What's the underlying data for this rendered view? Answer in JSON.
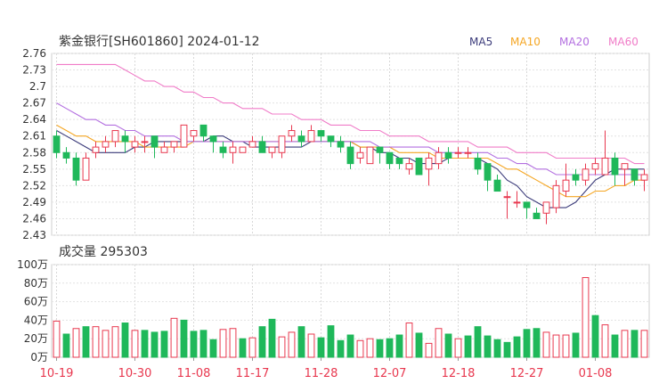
{
  "chart_data": [
    {
      "type": "candlestick",
      "title": "紫金银行[SH601860] 2024-01-12",
      "legend": [
        {
          "name": "MA5",
          "color": "#3b3b7a"
        },
        {
          "name": "MA10",
          "color": "#f5a623"
        },
        {
          "name": "MA20",
          "color": "#b36fe0"
        },
        {
          "name": "MA60",
          "color": "#f07cc8"
        }
      ],
      "legend_position": "top-right",
      "ylim": [
        2.43,
        2.76
      ],
      "yticks": [
        "2.76",
        "2.73",
        "2.7",
        "2.67",
        "2.64",
        "2.61",
        "2.58",
        "2.55",
        "2.52",
        "2.49",
        "2.46",
        "2.43"
      ],
      "grid": true,
      "colors": {
        "up": "#e8384f",
        "down": "#1fb85a"
      },
      "candles": [
        [
          2.61,
          2.58,
          2.62,
          2.57
        ],
        [
          2.58,
          2.57,
          2.59,
          2.56
        ],
        [
          2.57,
          2.53,
          2.58,
          2.52
        ],
        [
          2.53,
          2.57,
          2.58,
          2.53
        ],
        [
          2.58,
          2.59,
          2.6,
          2.57
        ],
        [
          2.59,
          2.6,
          2.61,
          2.58
        ],
        [
          2.6,
          2.62,
          2.62,
          2.59
        ],
        [
          2.61,
          2.6,
          2.62,
          2.58
        ],
        [
          2.59,
          2.6,
          2.61,
          2.58
        ],
        [
          2.6,
          2.6,
          2.61,
          2.58
        ],
        [
          2.61,
          2.59,
          2.61,
          2.57
        ],
        [
          2.58,
          2.59,
          2.6,
          2.58
        ],
        [
          2.59,
          2.6,
          2.6,
          2.58
        ],
        [
          2.59,
          2.63,
          2.63,
          2.59
        ],
        [
          2.61,
          2.62,
          2.62,
          2.6
        ],
        [
          2.63,
          2.61,
          2.63,
          2.6
        ],
        [
          2.61,
          2.6,
          2.61,
          2.58
        ],
        [
          2.59,
          2.58,
          2.6,
          2.57
        ],
        [
          2.58,
          2.59,
          2.6,
          2.56
        ],
        [
          2.58,
          2.59,
          2.59,
          2.58
        ],
        [
          2.59,
          2.6,
          2.61,
          2.59
        ],
        [
          2.6,
          2.58,
          2.61,
          2.58
        ],
        [
          2.58,
          2.59,
          2.59,
          2.57
        ],
        [
          2.58,
          2.61,
          2.61,
          2.57
        ],
        [
          2.61,
          2.62,
          2.63,
          2.6
        ],
        [
          2.61,
          2.6,
          2.62,
          2.59
        ],
        [
          2.6,
          2.62,
          2.63,
          2.6
        ],
        [
          2.62,
          2.61,
          2.62,
          2.6
        ],
        [
          2.61,
          2.6,
          2.61,
          2.59
        ],
        [
          2.6,
          2.59,
          2.61,
          2.58
        ],
        [
          2.59,
          2.56,
          2.6,
          2.55
        ],
        [
          2.57,
          2.58,
          2.59,
          2.56
        ],
        [
          2.56,
          2.59,
          2.59,
          2.56
        ],
        [
          2.59,
          2.58,
          2.59,
          2.56
        ],
        [
          2.58,
          2.56,
          2.58,
          2.55
        ],
        [
          2.57,
          2.56,
          2.57,
          2.55
        ],
        [
          2.55,
          2.56,
          2.57,
          2.54
        ],
        [
          2.57,
          2.54,
          2.57,
          2.54
        ],
        [
          2.55,
          2.57,
          2.58,
          2.52
        ],
        [
          2.56,
          2.58,
          2.59,
          2.55
        ],
        [
          2.58,
          2.57,
          2.59,
          2.56
        ],
        [
          2.58,
          2.58,
          2.59,
          2.57
        ],
        [
          2.58,
          2.58,
          2.59,
          2.57
        ],
        [
          2.57,
          2.55,
          2.58,
          2.54
        ],
        [
          2.56,
          2.53,
          2.56,
          2.51
        ],
        [
          2.53,
          2.51,
          2.54,
          2.51
        ],
        [
          2.5,
          2.5,
          2.51,
          2.46
        ],
        [
          2.49,
          2.49,
          2.51,
          2.48
        ],
        [
          2.49,
          2.48,
          2.49,
          2.46
        ],
        [
          2.47,
          2.46,
          2.48,
          2.46
        ],
        [
          2.47,
          2.49,
          2.49,
          2.45
        ],
        [
          2.48,
          2.52,
          2.53,
          2.47
        ],
        [
          2.51,
          2.53,
          2.56,
          2.5
        ],
        [
          2.54,
          2.53,
          2.55,
          2.52
        ],
        [
          2.53,
          2.55,
          2.56,
          2.52
        ],
        [
          2.55,
          2.56,
          2.57,
          2.54
        ],
        [
          2.54,
          2.57,
          2.62,
          2.54
        ],
        [
          2.57,
          2.54,
          2.58,
          2.52
        ],
        [
          2.55,
          2.56,
          2.56,
          2.52
        ],
        [
          2.55,
          2.53,
          2.55,
          2.52
        ],
        [
          2.53,
          2.54,
          2.55,
          2.51
        ]
      ],
      "ma": {
        "MA5": [
          2.62,
          2.61,
          2.6,
          2.59,
          2.58,
          2.58,
          2.58,
          2.58,
          2.59,
          2.59,
          2.6,
          2.6,
          2.6,
          2.6,
          2.6,
          2.6,
          2.61,
          2.61,
          2.6,
          2.6,
          2.59,
          2.59,
          2.59,
          2.59,
          2.59,
          2.59,
          2.6,
          2.6,
          2.6,
          2.6,
          2.6,
          2.59,
          2.59,
          2.58,
          2.58,
          2.57,
          2.57,
          2.56,
          2.56,
          2.56,
          2.57,
          2.57,
          2.57,
          2.57,
          2.56,
          2.55,
          2.53,
          2.52,
          2.5,
          2.49,
          2.48,
          2.48,
          2.48,
          2.49,
          2.51,
          2.53,
          2.54,
          2.55,
          2.55,
          2.55,
          2.55
        ],
        "MA10": [
          2.63,
          2.62,
          2.61,
          2.61,
          2.6,
          2.6,
          2.6,
          2.6,
          2.6,
          2.59,
          2.59,
          2.59,
          2.59,
          2.59,
          2.6,
          2.6,
          2.6,
          2.6,
          2.6,
          2.6,
          2.6,
          2.6,
          2.6,
          2.6,
          2.6,
          2.6,
          2.6,
          2.6,
          2.6,
          2.6,
          2.6,
          2.59,
          2.59,
          2.59,
          2.59,
          2.58,
          2.58,
          2.58,
          2.58,
          2.57,
          2.57,
          2.57,
          2.57,
          2.57,
          2.57,
          2.56,
          2.55,
          2.55,
          2.54,
          2.53,
          2.52,
          2.51,
          2.5,
          2.5,
          2.5,
          2.51,
          2.51,
          2.52,
          2.52,
          2.53,
          2.53
        ],
        "MA20": [
          2.67,
          2.66,
          2.65,
          2.64,
          2.64,
          2.63,
          2.63,
          2.62,
          2.62,
          2.61,
          2.61,
          2.61,
          2.61,
          2.6,
          2.6,
          2.6,
          2.6,
          2.6,
          2.6,
          2.6,
          2.6,
          2.6,
          2.6,
          2.6,
          2.6,
          2.6,
          2.6,
          2.6,
          2.6,
          2.6,
          2.6,
          2.6,
          2.6,
          2.59,
          2.59,
          2.59,
          2.59,
          2.59,
          2.59,
          2.58,
          2.58,
          2.58,
          2.58,
          2.58,
          2.58,
          2.57,
          2.57,
          2.56,
          2.56,
          2.55,
          2.55,
          2.54,
          2.54,
          2.54,
          2.54,
          2.54,
          2.54,
          2.54,
          2.54,
          2.54,
          2.54
        ],
        "MA60": [
          2.74,
          2.74,
          2.74,
          2.74,
          2.74,
          2.74,
          2.74,
          2.73,
          2.72,
          2.71,
          2.71,
          2.7,
          2.7,
          2.69,
          2.69,
          2.68,
          2.68,
          2.67,
          2.67,
          2.66,
          2.66,
          2.66,
          2.65,
          2.65,
          2.65,
          2.64,
          2.64,
          2.64,
          2.63,
          2.63,
          2.63,
          2.62,
          2.62,
          2.62,
          2.61,
          2.61,
          2.61,
          2.61,
          2.6,
          2.6,
          2.6,
          2.6,
          2.6,
          2.59,
          2.59,
          2.59,
          2.59,
          2.58,
          2.58,
          2.58,
          2.58,
          2.57,
          2.57,
          2.57,
          2.57,
          2.57,
          2.57,
          2.57,
          2.57,
          2.56,
          2.56
        ]
      }
    },
    {
      "type": "bar",
      "title": "成交量 295303",
      "ylim": [
        0,
        100
      ],
      "yticks": [
        "100万",
        "80万",
        "60万",
        "40万",
        "20万",
        "0万"
      ],
      "unit": "万",
      "grid": true,
      "values": [
        39,
        25,
        31,
        33,
        33,
        29,
        33,
        37,
        29,
        29,
        27,
        28,
        42,
        40,
        28,
        29,
        19,
        30,
        31,
        20,
        21,
        33,
        41,
        22,
        27,
        33,
        25,
        21,
        34,
        18,
        24,
        18,
        20,
        19,
        20,
        24,
        37,
        26,
        15,
        31,
        25,
        20,
        23,
        33,
        23,
        19,
        16,
        22,
        30,
        31,
        27,
        24,
        24,
        26,
        86,
        45,
        35,
        24,
        29,
        29,
        29
      ],
      "up": [
        true,
        false,
        true,
        false,
        true,
        true,
        true,
        false,
        true,
        false,
        false,
        false,
        true,
        false,
        false,
        false,
        false,
        true,
        true,
        false,
        true,
        false,
        false,
        true,
        true,
        false,
        true,
        false,
        false,
        false,
        false,
        true,
        true,
        false,
        false,
        false,
        true,
        false,
        true,
        true,
        false,
        true,
        false,
        false,
        false,
        false,
        false,
        false,
        false,
        false,
        true,
        true,
        true,
        false,
        true,
        false,
        true,
        false,
        true,
        false,
        true
      ],
      "x_tick_labels": [
        "10-19",
        "10-30",
        "11-08",
        "11-17",
        "11-28",
        "12-07",
        "12-18",
        "12-27",
        "01-08"
      ],
      "x_tick_index": [
        0,
        8,
        14,
        20,
        27,
        34,
        41,
        48,
        55
      ]
    }
  ]
}
